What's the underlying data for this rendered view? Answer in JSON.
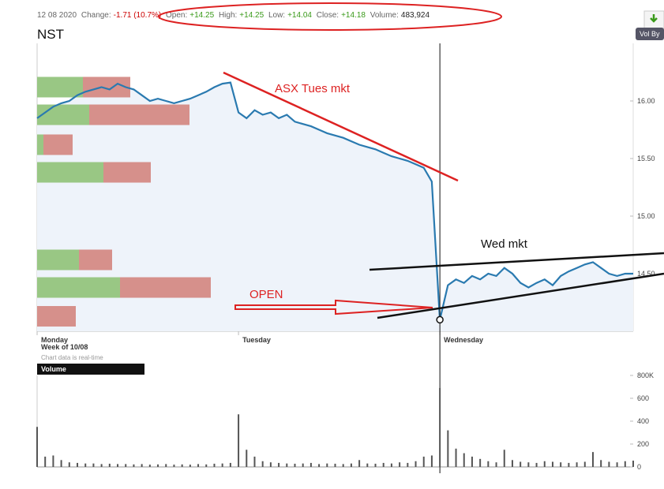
{
  "quote": {
    "date": "12 08 2020",
    "fields": [
      {
        "label": "Change:",
        "value": "-1.71 (10.7%)"
      },
      {
        "label": "Open:",
        "value": "+14.25"
      },
      {
        "label": "High:",
        "value": "+14.25"
      },
      {
        "label": "Low:",
        "value": "+14.04"
      },
      {
        "label": "Close:",
        "value": "+14.18"
      },
      {
        "label": "Volume:",
        "value": "483,924"
      }
    ]
  },
  "ticker": "NST",
  "vol_by_button": "Vol By",
  "chart_data": [
    {
      "type": "line",
      "color": "#2a7ab0",
      "x": [
        0,
        1,
        2,
        3,
        4,
        5,
        6,
        7,
        8,
        9,
        10,
        11,
        12,
        13,
        14,
        15,
        16,
        17,
        18,
        19,
        20,
        21,
        22,
        23,
        24,
        25,
        26,
        27,
        28,
        29,
        30,
        31,
        32,
        33,
        34,
        35,
        36,
        37,
        38,
        39,
        40,
        41,
        42,
        43,
        44,
        45,
        46,
        47,
        48,
        49,
        50,
        51,
        52,
        53,
        54,
        55,
        56,
        57,
        58,
        59,
        60,
        61,
        62,
        63,
        64,
        65,
        66,
        67,
        68,
        69,
        70,
        71,
        72,
        73,
        74
      ],
      "values": [
        15.85,
        15.9,
        15.95,
        15.98,
        16.0,
        16.05,
        16.08,
        16.1,
        16.12,
        16.1,
        16.15,
        16.12,
        16.1,
        16.05,
        16.0,
        16.02,
        16.0,
        15.98,
        16.0,
        16.02,
        16.05,
        16.08,
        16.12,
        16.15,
        16.16,
        15.9,
        15.85,
        15.92,
        15.88,
        15.9,
        15.85,
        15.88,
        15.82,
        15.8,
        15.78,
        15.75,
        15.72,
        15.7,
        15.68,
        15.65,
        15.62,
        15.6,
        15.58,
        15.55,
        15.52,
        15.5,
        15.48,
        15.45,
        15.42,
        15.3,
        14.1,
        14.4,
        14.45,
        14.42,
        14.48,
        14.45,
        14.5,
        14.48,
        14.55,
        14.5,
        14.42,
        14.38,
        14.42,
        14.45,
        14.4,
        14.48,
        14.52,
        14.55,
        14.58,
        14.6,
        14.55,
        14.5,
        14.48,
        14.5,
        14.5
      ],
      "xlim": [
        0,
        74
      ],
      "xticks": [
        {
          "value": 0,
          "label": "Monday"
        },
        {
          "value": 25,
          "label": "Tuesday"
        },
        {
          "value": 50,
          "label": "Wednesday"
        }
      ],
      "ylim": [
        14.0,
        16.5
      ],
      "yticks": [
        {
          "value": 16,
          "label": "16.00"
        },
        {
          "value": 15.5,
          "label": "15.50"
        },
        {
          "value": 15,
          "label": "15.00"
        },
        {
          "value": 14.5,
          "label": "14.50"
        }
      ],
      "week_label": "Week of 10/08",
      "note": "Chart data is real-time",
      "volume_profile": {
        "levels": [
          16.12,
          15.88,
          15.62,
          15.38,
          14.62,
          14.38,
          14.13
        ],
        "buy": [
          58,
          66,
          8,
          84,
          53,
          105,
          0
        ],
        "sell": [
          60,
          127,
          37,
          60,
          42,
          115,
          49
        ],
        "buy_color": "#93c47d",
        "sell_color": "#d48a85"
      },
      "annotations": [
        "ASX Tues mkt",
        "Wed mkt",
        "OPEN"
      ]
    },
    {
      "type": "bar",
      "title": "Volume",
      "color": "#555555",
      "x": [
        0,
        1,
        2,
        3,
        4,
        5,
        6,
        7,
        8,
        9,
        10,
        11,
        12,
        13,
        14,
        15,
        16,
        17,
        18,
        19,
        20,
        21,
        22,
        23,
        24,
        25,
        26,
        27,
        28,
        29,
        30,
        31,
        32,
        33,
        34,
        35,
        36,
        37,
        38,
        39,
        40,
        41,
        42,
        43,
        44,
        45,
        46,
        47,
        48,
        49,
        50,
        51,
        52,
        53,
        54,
        55,
        56,
        57,
        58,
        59,
        60,
        61,
        62,
        63,
        64,
        65,
        66,
        67,
        68,
        69,
        70,
        71,
        72,
        73,
        74
      ],
      "values": [
        350,
        90,
        100,
        60,
        40,
        35,
        30,
        30,
        25,
        28,
        25,
        25,
        22,
        25,
        20,
        22,
        25,
        20,
        22,
        20,
        25,
        22,
        28,
        30,
        35,
        460,
        150,
        90,
        50,
        40,
        35,
        30,
        28,
        30,
        35,
        25,
        30,
        28,
        25,
        30,
        60,
        30,
        28,
        35,
        30,
        40,
        35,
        50,
        90,
        100,
        690,
        320,
        160,
        120,
        90,
        70,
        50,
        40,
        150,
        60,
        45,
        40,
        35,
        50,
        45,
        40,
        35,
        40,
        45,
        130,
        60,
        45,
        40,
        50,
        55
      ],
      "xlim": [
        0,
        74
      ],
      "ylim": [
        0,
        800
      ],
      "yticks": [
        0,
        200,
        400,
        600,
        {
          "value": 800,
          "label": "800K"
        }
      ]
    }
  ]
}
